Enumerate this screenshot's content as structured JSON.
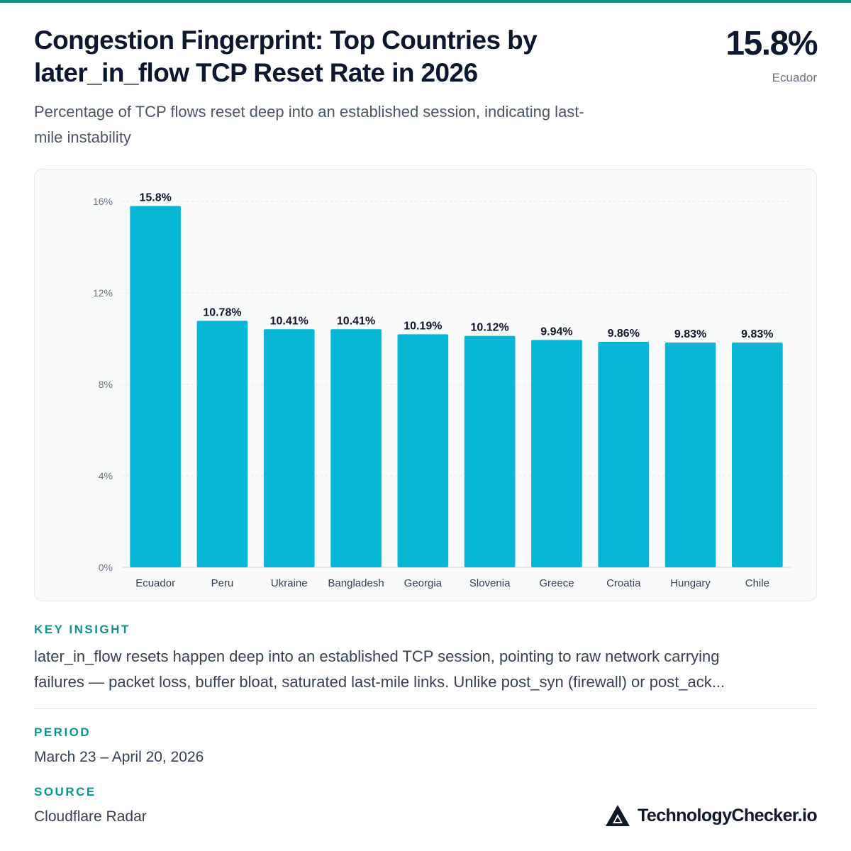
{
  "header": {
    "title_line1": "Congestion Fingerprint: Top Countries by",
    "title_line2": "later_in_flow TCP Reset Rate in 2026",
    "subtitle_line1": "Percentage of TCP flows reset deep into an established session, indicating last-",
    "subtitle_line2": "mile instability"
  },
  "headline_stat": {
    "value": "15.8%",
    "label": "Ecuador"
  },
  "colors": {
    "accent": "#0d9488",
    "bar": "#06b6d4",
    "topbar": "#0d9488"
  },
  "chart_data": {
    "type": "bar",
    "categories": [
      "Ecuador",
      "Peru",
      "Ukraine",
      "Bangladesh",
      "Georgia",
      "Slovenia",
      "Greece",
      "Croatia",
      "Hungary",
      "Chile"
    ],
    "values": [
      15.8,
      10.78,
      10.41,
      10.41,
      10.19,
      10.12,
      9.94,
      9.86,
      9.83,
      9.83
    ],
    "data_labels": [
      "15.8%",
      "10.78%",
      "10.41%",
      "10.41%",
      "10.19%",
      "10.12%",
      "9.94%",
      "9.86%",
      "9.83%",
      "9.83%"
    ],
    "yticks": [
      0,
      4,
      8,
      12,
      16
    ],
    "ytick_labels": [
      "0%",
      "4%",
      "8%",
      "12%",
      "16%"
    ],
    "ylim": [
      0,
      16
    ],
    "grid": true,
    "title": "",
    "xlabel": "",
    "ylabel": ""
  },
  "insight": {
    "label": "KEY INSIGHT",
    "line1": "later_in_flow resets happen deep into an established TCP session, pointing to raw network carrying",
    "line2": "failures — packet loss, buffer bloat, saturated last-mile links. Unlike post_syn (firewall) or post_ack..."
  },
  "period": {
    "label": "PERIOD",
    "value": "March 23 – April 20, 2026"
  },
  "source": {
    "label": "SOURCE",
    "value": "Cloudflare Radar"
  },
  "brand": {
    "name": "TechnologyChecker.io",
    "icon": "triangle-logo-icon"
  }
}
